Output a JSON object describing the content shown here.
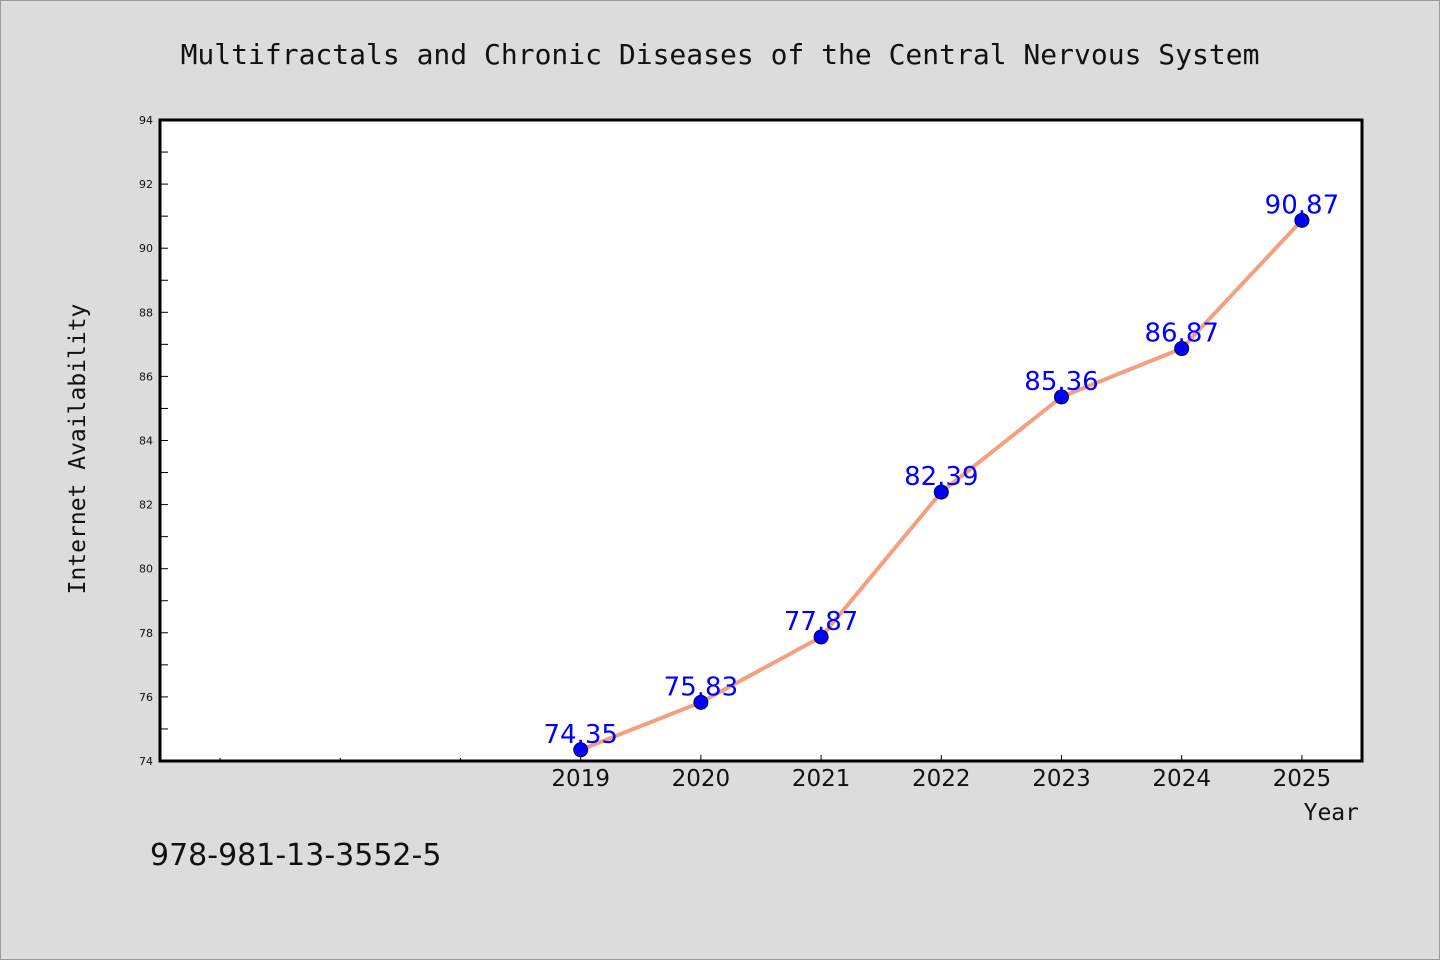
{
  "colors": {
    "background": "#dcdcdc",
    "plot_background": "#ffffff",
    "line": "#f4a07e",
    "marker": "#0000ff",
    "data_label": "#0000ff",
    "text": "#111111"
  },
  "footer_text": "978-981-13-3552-5",
  "chart_data": {
    "type": "line",
    "title": "Multifractals and Chronic Diseases of the Central Nervous System",
    "xlabel": "Year",
    "ylabel": "Internet Availability",
    "x_tick_labels": [
      "2019",
      "2020",
      "2021",
      "2022",
      "2023",
      "2024",
      "2025"
    ],
    "xlim": [
      2015.5,
      2025.5
    ],
    "ylim": [
      74,
      94
    ],
    "y_ticks": [
      74,
      76,
      78,
      80,
      82,
      84,
      86,
      88,
      90,
      92,
      94
    ],
    "grid": false,
    "legend": "none",
    "series": [
      {
        "x": [
          2019,
          2020,
          2021,
          2022,
          2023,
          2024,
          2025
        ],
        "values": [
          74.35,
          75.83,
          77.87,
          82.39,
          85.36,
          86.87,
          90.87
        ],
        "labels": [
          "74.35",
          "75.83",
          "77.87",
          "82.39",
          "85.36",
          "86.87",
          "90.87"
        ]
      }
    ]
  }
}
